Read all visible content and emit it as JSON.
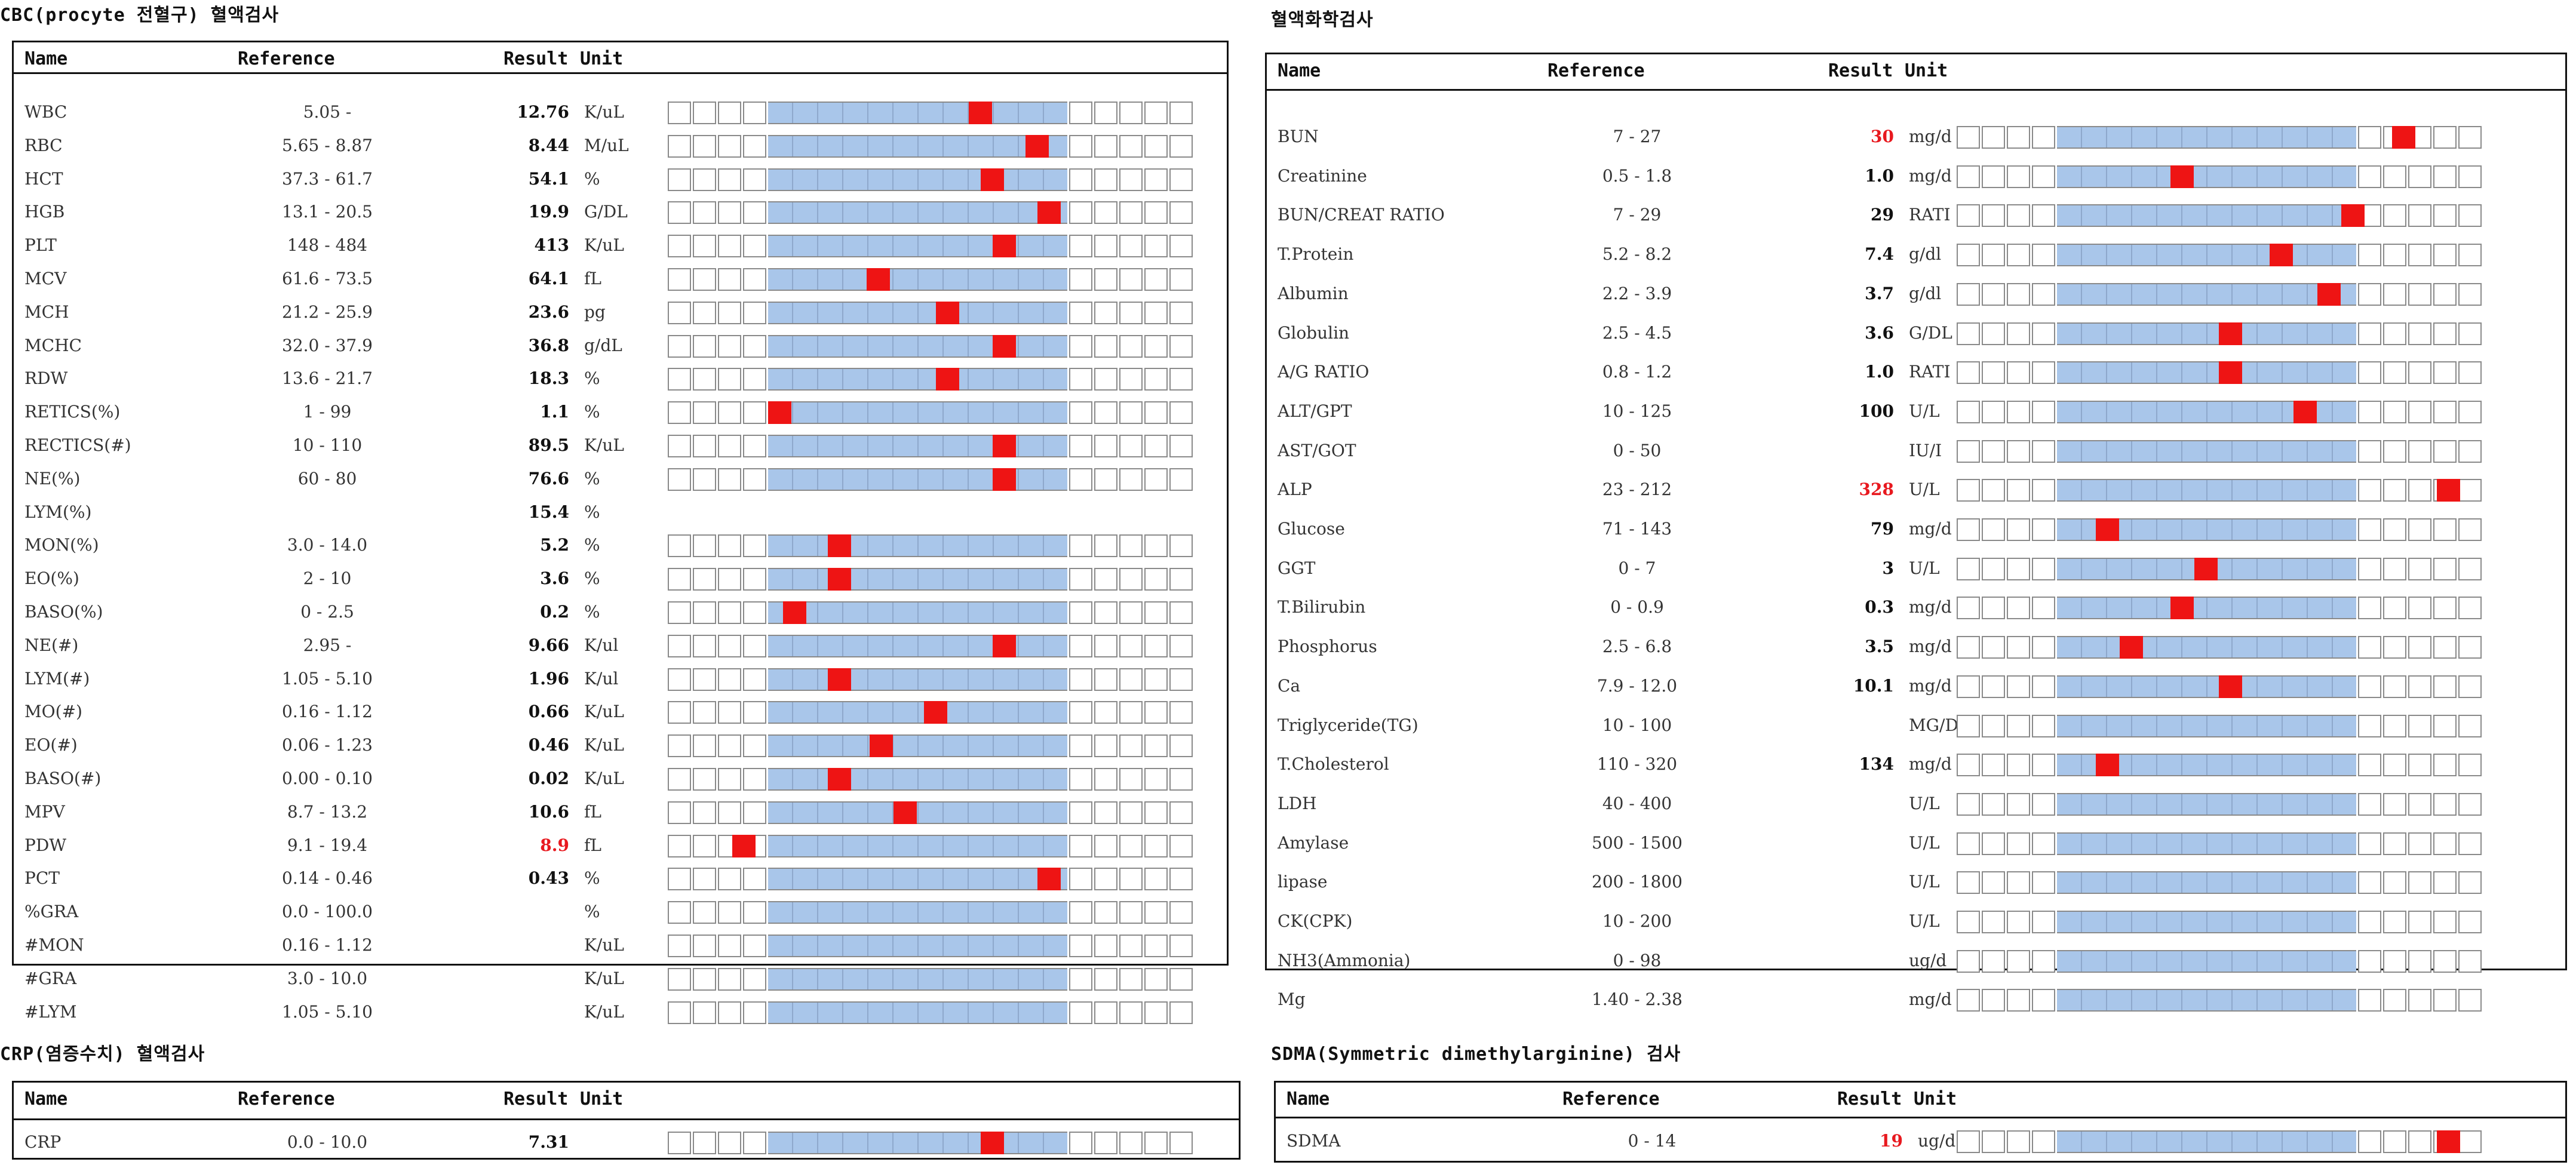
{
  "columns": {
    "name": "Name",
    "reference": "Reference",
    "result": "Result",
    "unit": "Unit"
  },
  "colors": {
    "marker": "#ee1414",
    "band": "#a9c6ea",
    "high_value": "#e8191f"
  },
  "sections": [
    {
      "id": "cbc",
      "title": "CBC(procyte 전혈구) 혈액검사",
      "rows": [
        {
          "name": "WBC",
          "reference": "5.05 -",
          "result": "12.76",
          "unit": "K/uL",
          "gauge": true,
          "marker": 0.67
        },
        {
          "name": "RBC",
          "reference": "5.65 - 8.87",
          "result": "8.44",
          "unit": "M/uL",
          "gauge": true,
          "marker": 0.86
        },
        {
          "name": "HCT",
          "reference": "37.3 - 61.7",
          "result": "54.1",
          "unit": "%",
          "gauge": true,
          "marker": 0.71
        },
        {
          "name": "HGB",
          "reference": "13.1 - 20.5",
          "result": "19.9",
          "unit": "G/DL",
          "gauge": true,
          "marker": 0.9
        },
        {
          "name": "PLT",
          "reference": "148 - 484",
          "result": "413",
          "unit": "K/uL",
          "gauge": true,
          "marker": 0.75
        },
        {
          "name": "MCV",
          "reference": "61.6 - 73.5",
          "result": "64.1",
          "unit": "fL",
          "gauge": true,
          "marker": 0.33
        },
        {
          "name": "MCH",
          "reference": "21.2 - 25.9",
          "result": "23.6",
          "unit": "pg",
          "gauge": true,
          "marker": 0.56
        },
        {
          "name": "MCHC",
          "reference": "32.0 - 37.9",
          "result": "36.8",
          "unit": "g/dL",
          "gauge": true,
          "marker": 0.75
        },
        {
          "name": "RDW",
          "reference": "13.6 - 21.7",
          "result": "18.3",
          "unit": "%",
          "gauge": true,
          "marker": 0.56
        },
        {
          "name": "RETICS(%)",
          "reference": "1 - 99",
          "result": "1.1",
          "unit": "%",
          "gauge": true,
          "marker": 0.0
        },
        {
          "name": "RECTICS(#)",
          "reference": "10 - 110",
          "result": "89.5",
          "unit": "K/uL",
          "gauge": true,
          "marker": 0.75
        },
        {
          "name": "NE(%)",
          "reference": "60 - 80",
          "result": "76.6",
          "unit": "%",
          "gauge": true,
          "marker": 0.75
        },
        {
          "name": "LYM(%)",
          "reference": "",
          "result": "15.4",
          "unit": "%",
          "gauge": false
        },
        {
          "name": "MON(%)",
          "reference": "3.0 - 14.0",
          "result": "5.2",
          "unit": "%",
          "gauge": true,
          "marker": 0.2
        },
        {
          "name": "EO(%)",
          "reference": "2 - 10",
          "result": "3.6",
          "unit": "%",
          "gauge": true,
          "marker": 0.2
        },
        {
          "name": "BASO(%)",
          "reference": "0 - 2.5",
          "result": "0.2",
          "unit": "%",
          "gauge": true,
          "marker": 0.05
        },
        {
          "name": "NE(#)",
          "reference": "2.95 -",
          "result": "9.66",
          "unit": "K/ul",
          "gauge": true,
          "marker": 0.75
        },
        {
          "name": "LYM(#)",
          "reference": "1.05 - 5.10",
          "result": "1.96",
          "unit": "K/ul",
          "gauge": true,
          "marker": 0.2
        },
        {
          "name": "MO(#)",
          "reference": "0.16 - 1.12",
          "result": "0.66",
          "unit": "K/uL",
          "gauge": true,
          "marker": 0.52
        },
        {
          "name": "EO(#)",
          "reference": "0.06 - 1.23",
          "result": "0.46",
          "unit": "K/uL",
          "gauge": true,
          "marker": 0.34
        },
        {
          "name": "BASO(#)",
          "reference": "0.00 - 0.10",
          "result": "0.02",
          "unit": "K/uL",
          "gauge": true,
          "marker": 0.2
        },
        {
          "name": "MPV",
          "reference": "8.7 - 13.2",
          "result": "10.6",
          "unit": "fL",
          "gauge": true,
          "marker": 0.42
        },
        {
          "name": "PDW",
          "reference": "9.1 - 19.4",
          "result": "8.9",
          "unit": "fL",
          "gauge": true,
          "marker": -0.12,
          "high": true
        },
        {
          "name": "PCT",
          "reference": "0.14 - 0.46",
          "result": "0.43",
          "unit": "%",
          "gauge": true,
          "marker": 0.9
        },
        {
          "name": "%GRA",
          "reference": "0.0 - 100.0",
          "result": "",
          "unit": "%",
          "gauge": true
        },
        {
          "name": "#MON",
          "reference": "0.16 - 1.12",
          "result": "",
          "unit": "K/uL",
          "gauge": true
        },
        {
          "name": "#GRA",
          "reference": "3.0 - 10.0",
          "result": "",
          "unit": "K/uL",
          "gauge": true
        },
        {
          "name": "#LYM",
          "reference": "1.05 - 5.10",
          "result": "",
          "unit": "K/uL",
          "gauge": true
        }
      ]
    },
    {
      "id": "chem",
      "title": "혈액화학검사",
      "rows": [
        {
          "name": "BUN",
          "reference": "7 - 27",
          "result": "30",
          "unit": "mg/d",
          "gauge": true,
          "marker": 1.12,
          "high": true
        },
        {
          "name": "Creatinine",
          "reference": "0.5 - 1.8",
          "result": "1.0",
          "unit": "mg/d",
          "gauge": true,
          "marker": 0.38
        },
        {
          "name": "BUN/CREAT RATIO",
          "reference": "7 - 29",
          "result": "29",
          "unit": "RATI",
          "gauge": true,
          "marker": 0.95
        },
        {
          "name": "T.Protein",
          "reference": "5.2 - 8.2",
          "result": "7.4",
          "unit": "g/dl",
          "gauge": true,
          "marker": 0.71
        },
        {
          "name": "Albumin",
          "reference": "2.2 - 3.9",
          "result": "3.7",
          "unit": "g/dl",
          "gauge": true,
          "marker": 0.87
        },
        {
          "name": "Globulin",
          "reference": "2.5 - 4.5",
          "result": "3.6",
          "unit": "G/DL",
          "gauge": true,
          "marker": 0.54
        },
        {
          "name": "A/G RATIO",
          "reference": "0.8 - 1.2",
          "result": "1.0",
          "unit": "RATI",
          "gauge": true,
          "marker": 0.54
        },
        {
          "name": "ALT/GPT",
          "reference": "10 - 125",
          "result": "100",
          "unit": "U/L",
          "gauge": true,
          "marker": 0.79
        },
        {
          "name": "AST/GOT",
          "reference": "0 - 50",
          "result": "",
          "unit": "IU/I",
          "gauge": true
        },
        {
          "name": "ALP",
          "reference": "23 - 212",
          "result": "328",
          "unit": "U/L",
          "gauge": true,
          "marker": 1.27,
          "high": true
        },
        {
          "name": "Glucose",
          "reference": "71 - 143",
          "result": "79",
          "unit": "mg/d",
          "gauge": true,
          "marker": 0.13
        },
        {
          "name": "GGT",
          "reference": "0 - 7",
          "result": "3",
          "unit": "U/L",
          "gauge": true,
          "marker": 0.46
        },
        {
          "name": "T.Bilirubin",
          "reference": "0 - 0.9",
          "result": "0.3",
          "unit": "mg/d",
          "gauge": true,
          "marker": 0.38
        },
        {
          "name": "Phosphorus",
          "reference": "2.5 - 6.8",
          "result": "3.5",
          "unit": "mg/d",
          "gauge": true,
          "marker": 0.21
        },
        {
          "name": "Ca",
          "reference": "7.9 - 12.0",
          "result": "10.1",
          "unit": "mg/d",
          "gauge": true,
          "marker": 0.54
        },
        {
          "name": "Triglyceride(TG)",
          "reference": "10 - 100",
          "result": "",
          "unit": "MG/D",
          "gauge": true
        },
        {
          "name": "T.Cholesterol",
          "reference": "110 - 320",
          "result": "134",
          "unit": "mg/d",
          "gauge": true,
          "marker": 0.13
        },
        {
          "name": "LDH",
          "reference": "40 - 400",
          "result": "",
          "unit": "U/L",
          "gauge": true
        },
        {
          "name": "Amylase",
          "reference": "500 - 1500",
          "result": "",
          "unit": "U/L",
          "gauge": true
        },
        {
          "name": "lipase",
          "reference": "200 - 1800",
          "result": "",
          "unit": "U/L",
          "gauge": true
        },
        {
          "name": "CK(CPK)",
          "reference": "10 - 200",
          "result": "",
          "unit": "U/L",
          "gauge": true
        },
        {
          "name": "NH3(Ammonia)",
          "reference": "0 - 98",
          "result": "",
          "unit": "ug/d",
          "gauge": true
        },
        {
          "name": "Mg",
          "reference": "1.40 - 2.38",
          "result": "",
          "unit": "mg/d",
          "gauge": true
        }
      ]
    },
    {
      "id": "crp",
      "title": "CRP(염증수치) 혈액검사",
      "rows": [
        {
          "name": "CRP",
          "reference": "0.0 - 10.0",
          "result": "7.31",
          "unit": "",
          "gauge": true,
          "marker": 0.71
        }
      ]
    },
    {
      "id": "sdma",
      "title": "SDMA(Symmetric dimethylarginine) 검사",
      "rows": [
        {
          "name": "SDMA",
          "reference": "0 - 14",
          "result": "19",
          "unit": "ug/d",
          "gauge": true,
          "marker": 1.27,
          "high": true
        }
      ]
    }
  ]
}
